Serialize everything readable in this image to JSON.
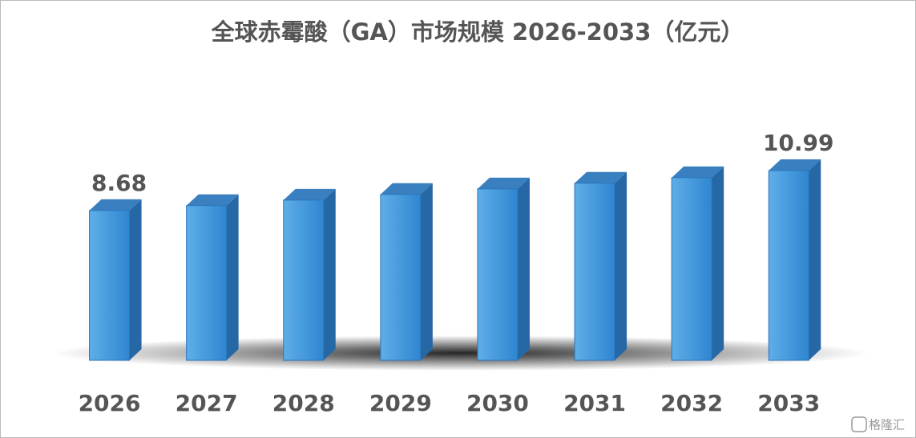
{
  "chart_data": {
    "type": "bar3d",
    "title": "全球赤霉酸（GA）市场规模 2026-2033（亿元）",
    "categories": [
      "2026",
      "2027",
      "2028",
      "2029",
      "2030",
      "2031",
      "2032",
      "2033"
    ],
    "values": [
      8.68,
      8.96,
      9.28,
      9.61,
      9.93,
      10.26,
      10.58,
      10.99
    ],
    "value_labels": [
      "8.68",
      null,
      null,
      null,
      null,
      null,
      null,
      "10.99"
    ],
    "color": "#3f95da"
  },
  "watermark": "格隆汇"
}
